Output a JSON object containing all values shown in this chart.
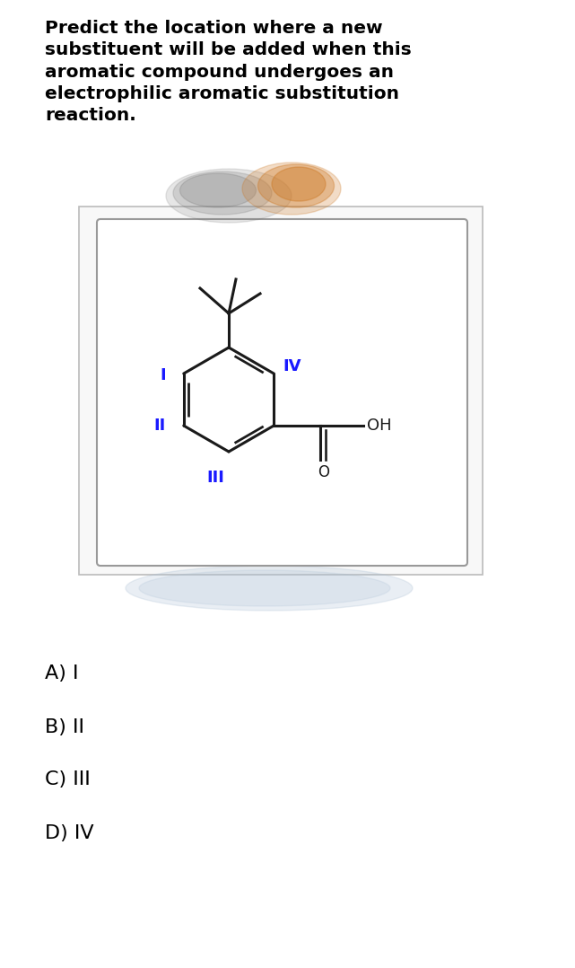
{
  "title_text": "Predict the location where a new\nsubstituent will be added when this\naromatic compound undergoes an\nelectrophilic aromatic substitution\nreaction.",
  "choices": [
    "A) I",
    "B) II",
    "C) III",
    "D) IV"
  ],
  "label_color": "#1a1aff",
  "molecule_color": "#1a1a1a",
  "background_color": "#ffffff",
  "title_fontsize": 14.5,
  "choice_fontsize": 16
}
